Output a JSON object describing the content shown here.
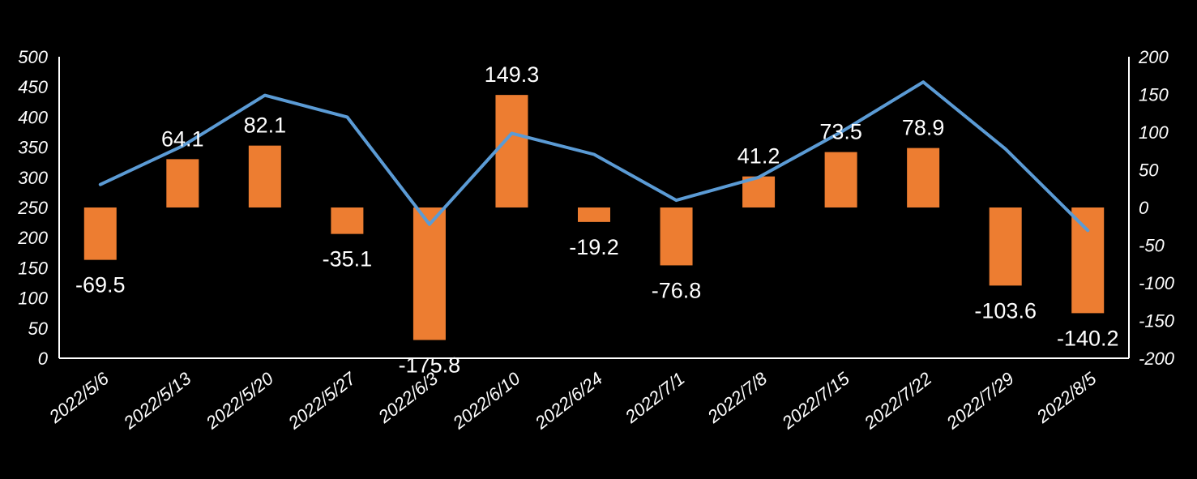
{
  "chart_data": {
    "type": "bar+line",
    "title": "",
    "xlabel": "",
    "ylabel_left": "",
    "ylabel_right": "",
    "categories": [
      "2022/5/6",
      "2022/5/13",
      "2022/5/20",
      "2022/5/27",
      "2022/6/3",
      "2022/6/10",
      "2022/6/24",
      "2022/7/1",
      "2022/7/8",
      "2022/7/15",
      "2022/7/22",
      "2022/7/29",
      "2022/8/5"
    ],
    "series": [
      {
        "name": "bar",
        "kind": "bar",
        "axis": "right",
        "color": "#ED7D31",
        "values": [
          -69.5,
          64.1,
          82.1,
          -35.1,
          -175.8,
          149.3,
          -19.2,
          -76.8,
          41.2,
          73.5,
          78.9,
          -103.6,
          -140.2
        ],
        "labels": [
          "-69.5",
          "64.1",
          "82.1",
          "-35.1",
          "-175.8",
          "149.3",
          "-19.2",
          "-76.8",
          "41.2",
          "73.5",
          "78.9",
          "-103.6",
          "-140.2"
        ]
      },
      {
        "name": "line",
        "kind": "line",
        "axis": "left",
        "color": "#5B9BD5",
        "values": [
          288,
          352,
          436,
          400,
          222,
          373,
          338,
          262,
          300,
          375,
          458,
          347,
          212
        ]
      }
    ],
    "y_left": {
      "lim": [
        0,
        500
      ],
      "ticks": [
        "0",
        "50",
        "100",
        "150",
        "200",
        "250",
        "300",
        "350",
        "400",
        "450",
        "500"
      ]
    },
    "y_right": {
      "lim": [
        -200,
        200
      ],
      "ticks": [
        "-200",
        "-150",
        "-100",
        "-50",
        "0",
        "50",
        "100",
        "150",
        "200"
      ]
    },
    "grid": false,
    "legend": "none"
  }
}
